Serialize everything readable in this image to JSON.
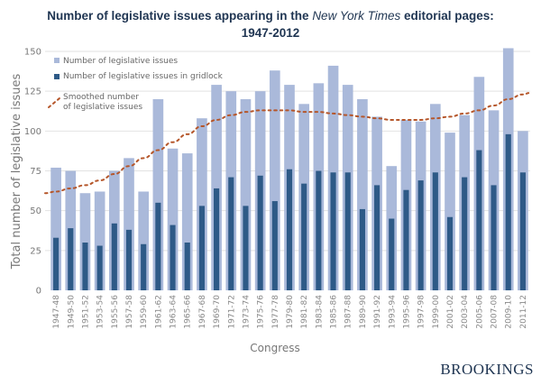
{
  "title": {
    "part1": "Number of legislative issues appearing in the ",
    "italic": "New York Times",
    "part2": " editorial pages:",
    "line2": "1947-2012"
  },
  "brand": "BROOKINGS",
  "chart_data": {
    "type": "bar",
    "title": "Number of legislative issues appearing in the New York Times editorial pages: 1947-2012",
    "xlabel": "Congress",
    "ylabel": "Total number of legislative issues",
    "ylim": [
      0,
      150
    ],
    "yticks": [
      "0",
      "25",
      "50",
      "75",
      "100",
      "125",
      "150"
    ],
    "grid": true,
    "legend_position": "top-left",
    "colors": {
      "total": "#aab9da",
      "gridlock": "#2e5a87",
      "smoothed": "#b5562a",
      "grid": "#e2e2e2"
    },
    "categories": [
      "1947-48",
      "1949-50",
      "1951-52",
      "1953-54",
      "1955-56",
      "1957-58",
      "1959-60",
      "1961-62",
      "1963-64",
      "1965-66",
      "1967-68",
      "1969-70",
      "1971-72",
      "1973-74",
      "1975-76",
      "1977-78",
      "1979-80",
      "1981-82",
      "1983-84",
      "1985-86",
      "1987-88",
      "1989-90",
      "1991-92",
      "1993-94",
      "1995-96",
      "1997-98",
      "1999-00",
      "2001-02",
      "2003-04",
      "2005-06",
      "2007-08",
      "2009-10",
      "2011-12"
    ],
    "series": [
      {
        "name": "Number of legislative issues",
        "type": "bar",
        "values": [
          77,
          75,
          61,
          62,
          75,
          83,
          62,
          120,
          89,
          86,
          108,
          129,
          125,
          120,
          125,
          138,
          129,
          117,
          130,
          141,
          129,
          120,
          109,
          78,
          107,
          106,
          117,
          99,
          110,
          134,
          113,
          152,
          100
        ]
      },
      {
        "name": "Number of legislative issues in gridlock",
        "type": "bar",
        "values": [
          33,
          39,
          30,
          28,
          42,
          38,
          29,
          55,
          41,
          30,
          53,
          64,
          71,
          53,
          72,
          56,
          76,
          67,
          75,
          74,
          74,
          51,
          66,
          45,
          63,
          69,
          74,
          46,
          71,
          88,
          66,
          98,
          74
        ]
      },
      {
        "name": "Smoothed number of legislative issues",
        "type": "line",
        "style": "dotted",
        "values": [
          62,
          64,
          66,
          69,
          73,
          78,
          83,
          88,
          93,
          98,
          103,
          107,
          110,
          112,
          113,
          113,
          113,
          112,
          112,
          111,
          110,
          109,
          108,
          107,
          107,
          107,
          108,
          109,
          111,
          113,
          116,
          120,
          123
        ]
      }
    ],
    "legend": [
      {
        "label": "Number of legislative issues",
        "swatch": "total"
      },
      {
        "label": "Number of legislative issues in gridlock",
        "swatch": "gridlock"
      },
      {
        "label": "Smoothed number",
        "label2": "of legislative issues",
        "swatch": "smoothed"
      }
    ]
  }
}
